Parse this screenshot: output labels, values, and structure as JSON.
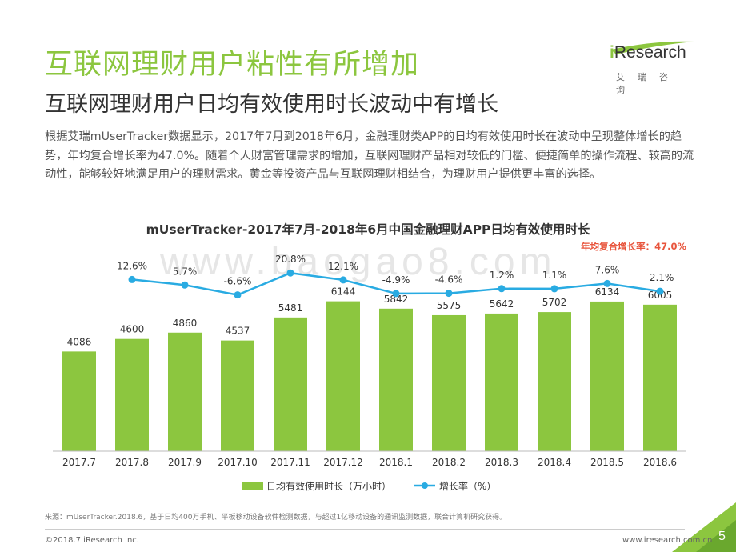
{
  "page": {
    "title": "互联网理财用户粘性有所增加",
    "subtitle": "互联网理财用户日均有效使用时长波动中有增长",
    "description": "根据艾瑞mUserTracker数据显示，2017年7月到2018年6月，金融理财类APP的日均有效使用时长在波动中呈现整体增长的趋势，年均复合增长率为47.0%。随着个人财富管理需求的增加，互联网理财产品相对较低的门槛、便捷简单的操作流程、较高的流动性，能够较好地满足用户的理财需求。黄金等投资产品与互联网理财相结合，为理财用户提供更丰富的选择。",
    "watermark": "www.baogao8.com"
  },
  "logo": {
    "text_i": "i",
    "text_rest": "Research",
    "sub": "艾瑞咨询"
  },
  "chart_data": {
    "type": "bar",
    "title": "mUserTracker-2017年7月-2018年6月中国金融理财APP日均有效使用时长",
    "annotation": "年均复合增长率：47.0%",
    "categories": [
      "2017.7",
      "2017.8",
      "2017.9",
      "2017.10",
      "2017.11",
      "2017.12",
      "2018.1",
      "2018.2",
      "2018.3",
      "2018.4",
      "2018.5",
      "2018.6"
    ],
    "series": [
      {
        "name": "日均有效使用时长（万小时）",
        "type": "bar",
        "values": [
          4086,
          4600,
          4860,
          4537,
          5481,
          6144,
          5842,
          5575,
          5642,
          5702,
          6134,
          6005
        ],
        "labels": [
          "4086",
          "4600",
          "4860",
          "4537",
          "5481",
          "6144",
          "5842",
          "5575",
          "5642",
          "5702",
          "6134",
          "6005"
        ]
      },
      {
        "name": "增长率（%）",
        "type": "line",
        "values": [
          null,
          12.6,
          5.7,
          -6.6,
          20.8,
          12.1,
          -4.9,
          -4.6,
          1.2,
          1.1,
          7.6,
          -2.1
        ],
        "labels": [
          "",
          "12.6%",
          "5.7%",
          "-6.6%",
          "20.8%",
          "12.1%",
          "-4.9%",
          "-4.6%",
          "1.2%",
          "1.1%",
          "7.6%",
          "-2.1%"
        ]
      }
    ],
    "ylim": [
      0,
      7000
    ],
    "legend": "bottom",
    "grid": false,
    "colors": {
      "bar": "#8cc63f",
      "line": "#29abe2",
      "annotation": "#e8543c"
    }
  },
  "footer": {
    "source": "来源：mUserTracker.2018.6，基于日均400万手机、平板移动设备软件检测数据，与超过1亿移动设备的通讯监测数据，联合计算机研究获得。",
    "copyright": "©2018.7 iResearch Inc.",
    "website": "www.iresearch.com.cn",
    "page_number": "5"
  }
}
